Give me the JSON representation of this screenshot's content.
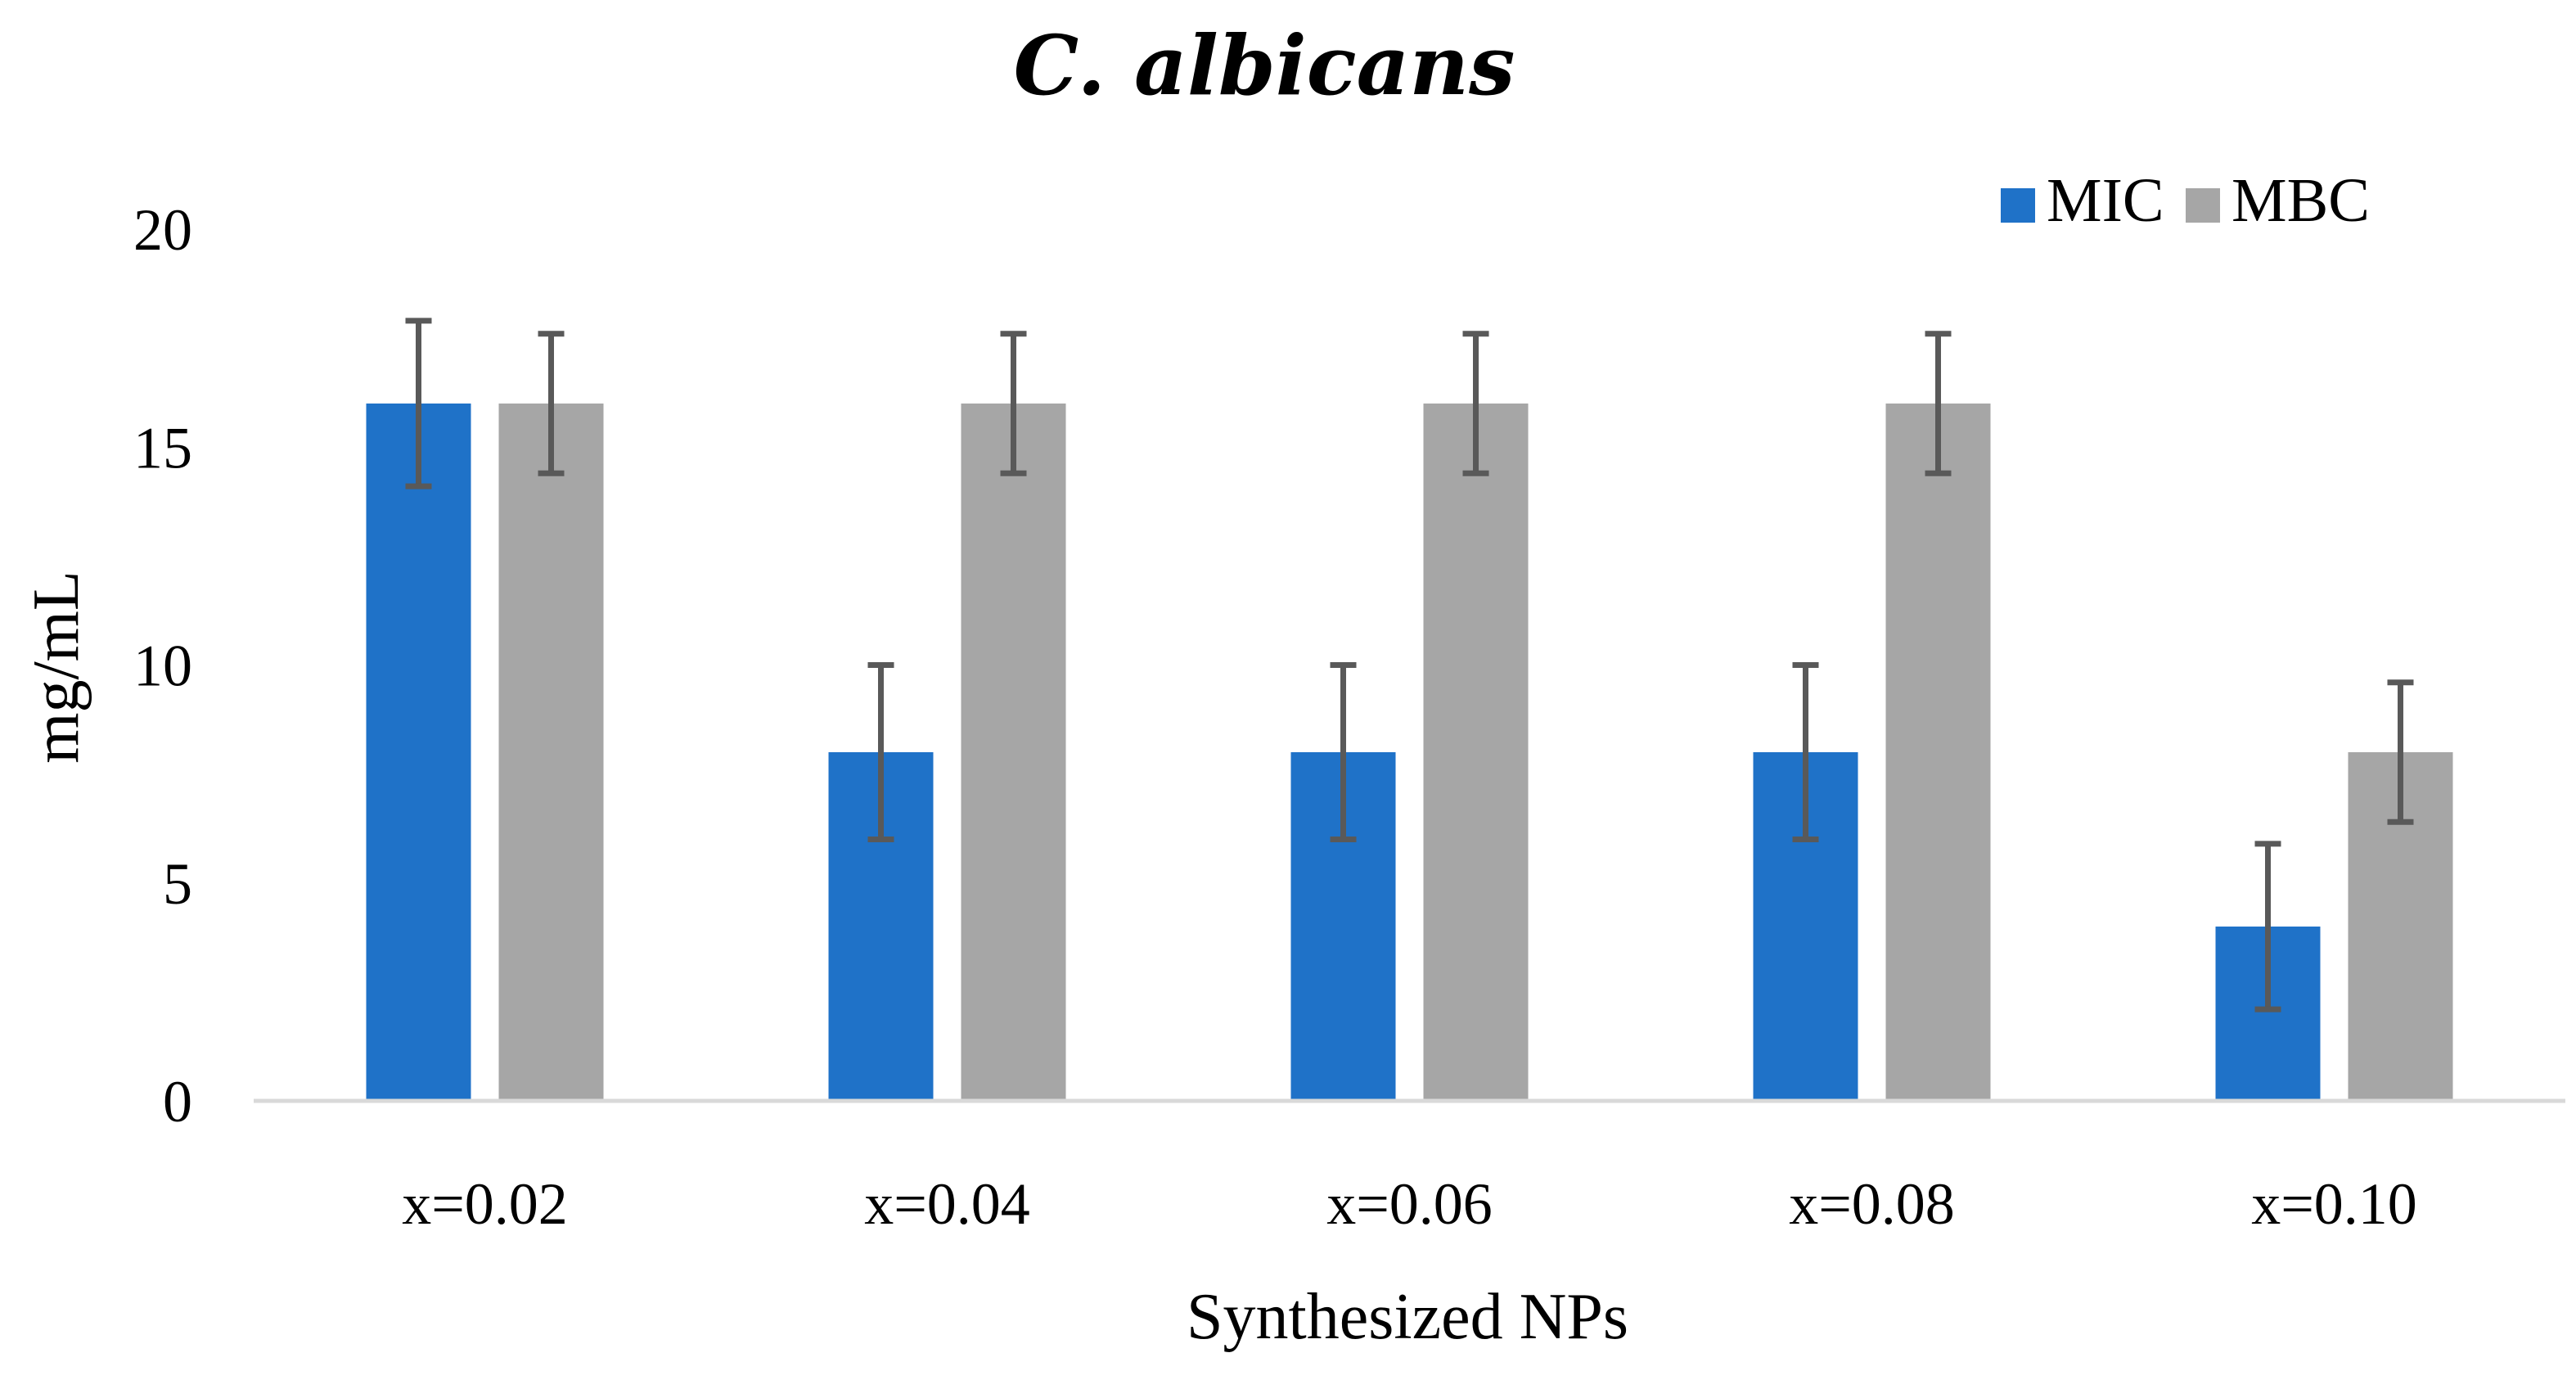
{
  "chart_data": {
    "type": "bar",
    "title": "C. albicans",
    "xlabel": "Synthesized NPs",
    "ylabel": "mg/mL",
    "ylim": [
      0,
      20
    ],
    "yticks": [
      0,
      5,
      10,
      15,
      20
    ],
    "grid": false,
    "legend_position": "top-right",
    "categories": [
      "x=0.02",
      "x=0.04",
      "x=0.06",
      "x=0.08",
      "x=0.10"
    ],
    "series": [
      {
        "name": "MIC",
        "color": "#1f72c8",
        "values": [
          16,
          8,
          8,
          8,
          4
        ],
        "error": [
          1.9,
          2.0,
          2.0,
          2.0,
          1.9
        ]
      },
      {
        "name": "MBC",
        "color": "#a6a6a6",
        "values": [
          16,
          16,
          16,
          16,
          8
        ],
        "error": [
          1.6,
          1.6,
          1.6,
          1.6,
          1.6
        ]
      }
    ],
    "error_bar_color": "#595959",
    "axis_color": "#d9d9d9"
  }
}
